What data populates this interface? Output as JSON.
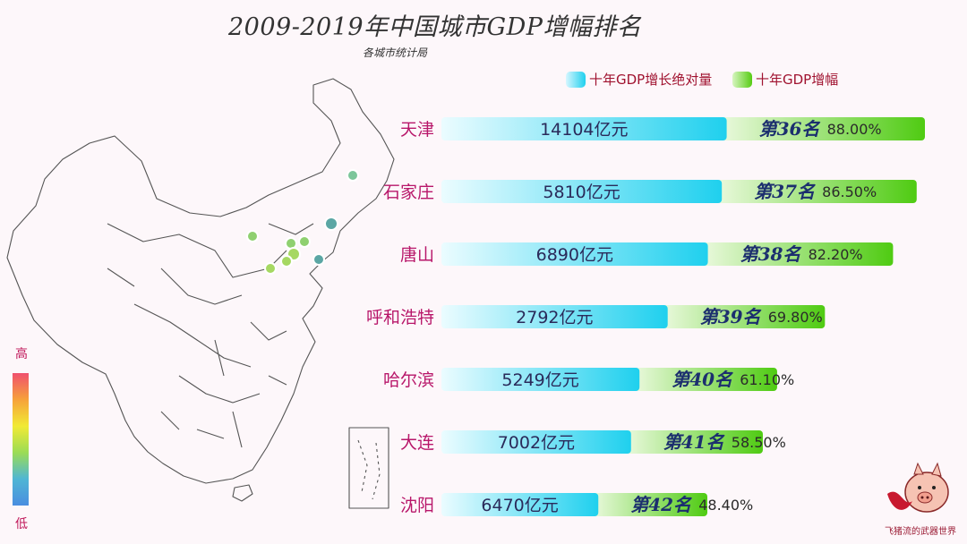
{
  "header": {
    "title": "2009-2019年中国城市GDP增幅排名",
    "subtitle": "各城市统计局"
  },
  "legend": {
    "absolute": "十年GDP增长绝对量",
    "rate": "十年GDP增幅"
  },
  "colorbar": {
    "high": "高",
    "low": "低"
  },
  "logo": {
    "text": "飞猪流的武器世界"
  },
  "colors": {
    "cyan_dark": "#1fd0ee",
    "cyan_light": "#e6fbff",
    "green_dark": "#4fcb12",
    "green_light": "#e2f7d2",
    "city_label": "#b8176a",
    "rank_text": "#1c2f6e"
  },
  "chart_data": {
    "type": "bar",
    "categories": [
      "天津",
      "石家庄",
      "唐山",
      "呼和浩特",
      "哈尔滨",
      "大连",
      "沈阳"
    ],
    "series": [
      {
        "name": "十年GDP增长绝对量",
        "values": [
          14104,
          5810,
          6890,
          2792,
          5249,
          7002,
          6470
        ],
        "labels": [
          "14104亿元",
          "5810亿元",
          "6890亿元",
          "2792亿元",
          "5249亿元",
          "7002亿元",
          "6470亿元"
        ]
      },
      {
        "name": "十年GDP增幅",
        "values": [
          88.0,
          86.5,
          82.2,
          69.8,
          61.1,
          58.5,
          48.4
        ],
        "labels": [
          "88.00%",
          "86.50%",
          "82.20%",
          "69.80%",
          "61.10%",
          "58.50%",
          "48.40%"
        ]
      }
    ],
    "ranks": [
      "第36名",
      "第37名",
      "第38名",
      "第39名",
      "第40名",
      "第41名",
      "第42名"
    ]
  }
}
